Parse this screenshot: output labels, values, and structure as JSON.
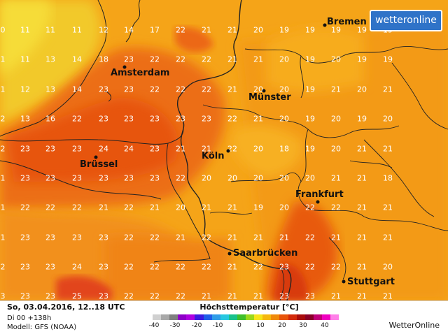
{
  "logo": {
    "text": "wetteronline"
  },
  "footer": {
    "line1": "So, 03.04.2016, 12..18 UTC",
    "line2": "Di 00 +138h",
    "line3": "Modell: GFS (NOAA)",
    "legend_title": "Höchsttemperatur [°C]",
    "brand": "WetterOnline",
    "legend_ticks": [
      "-40",
      "-30",
      "-20",
      "-10",
      "0",
      "10",
      "20",
      "30",
      "40"
    ],
    "legend_colors": [
      "#d0d0d0",
      "#a8a8a8",
      "#7f7f7f",
      "#8e00c8",
      "#b000e0",
      "#3c1be0",
      "#1f5de8",
      "#2f9ce8",
      "#26c7e0",
      "#18c28c",
      "#3fbf2a",
      "#9ad81a",
      "#f6e51a",
      "#f5b80e",
      "#f08a0a",
      "#e8540a",
      "#d32a0a",
      "#a80c0c",
      "#8a0028",
      "#c10078",
      "#f000c0",
      "#ff80e8"
    ]
  },
  "cities": [
    {
      "name": "Bremen"
    },
    {
      "name": "Amsterdam"
    },
    {
      "name": "Münster"
    },
    {
      "name": "Köln"
    },
    {
      "name": "Brüssel"
    },
    {
      "name": "Frankfurt"
    },
    {
      "name": "Saarbrücken"
    },
    {
      "name": "Stuttgart"
    }
  ],
  "temperature_grid": [
    [
      "0",
      "11",
      "11",
      "11",
      "12",
      "14",
      "17",
      "22",
      "21",
      "21",
      "20",
      "19",
      "19",
      "19",
      "19",
      "19"
    ],
    [
      "1",
      "11",
      "13",
      "14",
      "18",
      "23",
      "22",
      "22",
      "22",
      "21",
      "21",
      "20",
      "19",
      "20",
      "19",
      "19"
    ],
    [
      "1",
      "12",
      "13",
      "14",
      "23",
      "23",
      "22",
      "22",
      "22",
      "21",
      "20",
      "20",
      "19",
      "21",
      "20",
      "21"
    ],
    [
      "2",
      "13",
      "16",
      "22",
      "23",
      "23",
      "23",
      "23",
      "23",
      "22",
      "21",
      "20",
      "19",
      "20",
      "19",
      "20"
    ],
    [
      "2",
      "23",
      "23",
      "23",
      "24",
      "24",
      "23",
      "21",
      "21",
      "22",
      "20",
      "18",
      "19",
      "20",
      "21",
      "21"
    ],
    [
      "1",
      "23",
      "23",
      "23",
      "23",
      "23",
      "23",
      "22",
      "20",
      "20",
      "20",
      "20",
      "20",
      "21",
      "21",
      "18"
    ],
    [
      "1",
      "22",
      "22",
      "22",
      "21",
      "22",
      "21",
      "20",
      "21",
      "21",
      "19",
      "20",
      "22",
      "22",
      "21",
      "21"
    ],
    [
      "1",
      "23",
      "23",
      "23",
      "23",
      "22",
      "22",
      "21",
      "22",
      "21",
      "21",
      "21",
      "22",
      "21",
      "21",
      "21"
    ],
    [
      "2",
      "23",
      "23",
      "24",
      "23",
      "22",
      "22",
      "22",
      "22",
      "21",
      "22",
      "23",
      "22",
      "22",
      "21",
      "20"
    ],
    [
      "3",
      "23",
      "23",
      "25",
      "23",
      "22",
      "22",
      "22",
      "21",
      "21",
      "21",
      "23",
      "23",
      "21",
      "21",
      "21"
    ]
  ]
}
